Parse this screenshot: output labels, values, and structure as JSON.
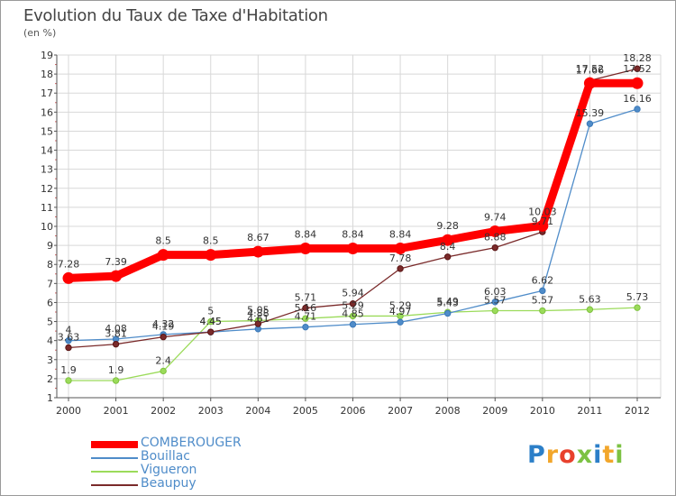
{
  "title": "Evolution du Taux de Taxe d'Habitation",
  "subtitle": "(en %)",
  "logo": [
    "P",
    "r",
    "o",
    "x",
    "i",
    "t",
    "i"
  ],
  "logo_colors": [
    "#2c7fc8",
    "#f2a62b",
    "#e8412d",
    "#7cc243",
    "#2c7fc8",
    "#f2a62b",
    "#7cc243"
  ],
  "chart_data": {
    "type": "line",
    "x": [
      "2000",
      "2001",
      "2002",
      "2003",
      "2004",
      "2005",
      "2006",
      "2007",
      "2008",
      "2009",
      "2010",
      "2011",
      "2012"
    ],
    "ylim": [
      1,
      19
    ],
    "yticks": [
      "1",
      "2",
      "3",
      "4",
      "5",
      "6",
      "7",
      "8",
      "9",
      "10",
      "11",
      "12",
      "13",
      "14",
      "15",
      "16",
      "17",
      "18",
      "19"
    ],
    "grid": true,
    "series": [
      {
        "name": "COMBEROUGER",
        "color": "#ff0000",
        "values": [
          7.28,
          7.39,
          8.5,
          8.5,
          8.67,
          8.84,
          8.84,
          8.84,
          9.28,
          9.74,
          10.03,
          17.52,
          17.52
        ],
        "labels": [
          "7.28",
          "7.39",
          "8.5",
          "8.5",
          "8.67",
          "8.84",
          "8.84",
          "8.84",
          "9.28",
          "9.74",
          "10.03",
          "17.52",
          "17.52"
        ]
      },
      {
        "name": "Bouillac",
        "color": "#4f8cc9",
        "values": [
          4,
          4.08,
          4.32,
          4.45,
          4.61,
          4.71,
          4.85,
          4.97,
          5.43,
          6.03,
          6.62,
          15.39,
          16.16
        ],
        "labels": [
          "4",
          "4.08",
          "4.32",
          "4.45",
          "4.61",
          "4.71",
          "4.85",
          "4.97",
          "5.43",
          "6.03",
          "6.62",
          "15.39",
          "16.16"
        ]
      },
      {
        "name": "Vigueron",
        "color": "#9bdb5a",
        "values": [
          1.9,
          1.9,
          2.4,
          5,
          5.05,
          5.16,
          5.29,
          5.29,
          5.49,
          5.57,
          5.57,
          5.63,
          5.73
        ],
        "labels": [
          "1.9",
          "1.9",
          "2.4",
          "5",
          "5.05",
          "5.16",
          "5.29",
          "5.29",
          "5.49",
          "5.57",
          "5.57",
          "5.63",
          "5.73"
        ]
      },
      {
        "name": "Beaupuy",
        "color": "#7a2a2a",
        "values": [
          3.63,
          3.81,
          4.19,
          4.45,
          4.88,
          5.71,
          5.94,
          7.78,
          8.4,
          8.88,
          9.71,
          17.66,
          18.28
        ],
        "labels": [
          "3.63",
          "3.81",
          "4.19",
          "4.45",
          "4.88",
          "5.71",
          "5.94",
          "7.78",
          "8.4",
          "8.88",
          "9.71",
          "17.66",
          "18.28"
        ]
      }
    ]
  }
}
